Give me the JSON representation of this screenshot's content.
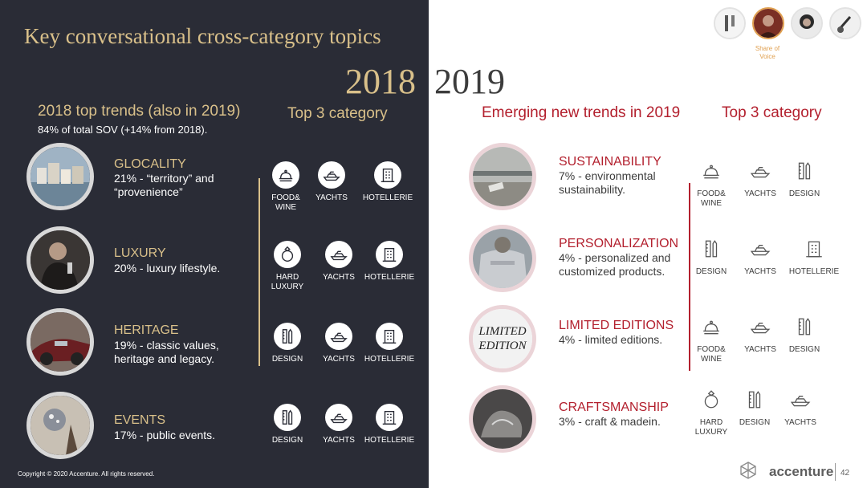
{
  "title": "Key conversational cross-category topics",
  "years": {
    "first": "2018",
    "second": "2019"
  },
  "left": {
    "heading": "2018 top trends (also in 2019)",
    "subheading": "84% of total SOV (+14% from 2018).",
    "category_heading": "Top 3 category",
    "trends": [
      {
        "name": "GLOCALITY",
        "desc": "21% - “territory” and\n“provenience”",
        "categories": [
          {
            "label": "FOOD&\nWINE",
            "icon": "food-wine-icon"
          },
          {
            "label": "YACHTS",
            "icon": "yacht-icon"
          },
          {
            "label": "HOTELLERIE",
            "icon": "hotel-icon"
          }
        ]
      },
      {
        "name": "LUXURY",
        "desc": "20% - luxury lifestyle.",
        "categories": [
          {
            "label": "HARD\nLUXURY",
            "icon": "ring-icon"
          },
          {
            "label": "YACHTS",
            "icon": "yacht-icon"
          },
          {
            "label": "HOTELLERIE",
            "icon": "hotel-icon"
          }
        ]
      },
      {
        "name": "HERITAGE",
        "desc": "19% - classic values,\nheritage and legacy.",
        "categories": [
          {
            "label": "DESIGN",
            "icon": "design-icon"
          },
          {
            "label": "YACHTS",
            "icon": "yacht-icon"
          },
          {
            "label": "HOTELLERIE",
            "icon": "hotel-icon"
          }
        ]
      },
      {
        "name": "EVENTS",
        "desc": "17% - public events.",
        "categories": [
          {
            "label": "DESIGN",
            "icon": "design-icon"
          },
          {
            "label": "YACHTS",
            "icon": "yacht-icon"
          },
          {
            "label": "HOTELLERIE",
            "icon": "hotel-icon"
          }
        ]
      }
    ]
  },
  "right": {
    "heading": "Emerging new trends in 2019",
    "category_heading": "Top 3 category",
    "trends": [
      {
        "name": "SUSTAINABILITY",
        "desc": "7% - environmental\nsustainability.",
        "categories": [
          {
            "label": "FOOD&\nWINE",
            "icon": "food-wine-icon"
          },
          {
            "label": "YACHTS",
            "icon": "yacht-icon"
          },
          {
            "label": "DESIGN",
            "icon": "design-icon"
          }
        ]
      },
      {
        "name": "PERSONALIZATION",
        "desc": "4% - personalized and\ncustomized products.",
        "categories": [
          {
            "label": "DESIGN",
            "icon": "design-icon"
          },
          {
            "label": "YACHTS",
            "icon": "yacht-icon"
          },
          {
            "label": "HOTELLERIE",
            "icon": "hotel-icon"
          }
        ]
      },
      {
        "name": "LIMITED EDITIONS",
        "desc": "4% - limited editions.",
        "photo_text": [
          "LIMITED",
          "EDITION"
        ],
        "categories": [
          {
            "label": "FOOD&\nWINE",
            "icon": "food-wine-icon"
          },
          {
            "label": "YACHTS",
            "icon": "yacht-icon"
          },
          {
            "label": "DESIGN",
            "icon": "design-icon"
          }
        ]
      },
      {
        "name": "CRAFTSMANSHIP",
        "desc": "3% - craft & madein.",
        "categories": [
          {
            "label": "HARD\nLUXURY",
            "icon": "ring-icon"
          },
          {
            "label": "DESIGN",
            "icon": "design-icon"
          },
          {
            "label": "YACHTS",
            "icon": "yacht-icon"
          }
        ]
      }
    ]
  },
  "share_of_voice": "Share of\nVoice",
  "copyright": "Copyright © 2020 Accenture. All rights reserved.",
  "logo": "accenture",
  "page_number": "42",
  "colors": {
    "dark_bg": "#2a2c36",
    "gold": "#d9c08a",
    "red": "#b3202e",
    "text_dark": "#3c3c3c"
  }
}
